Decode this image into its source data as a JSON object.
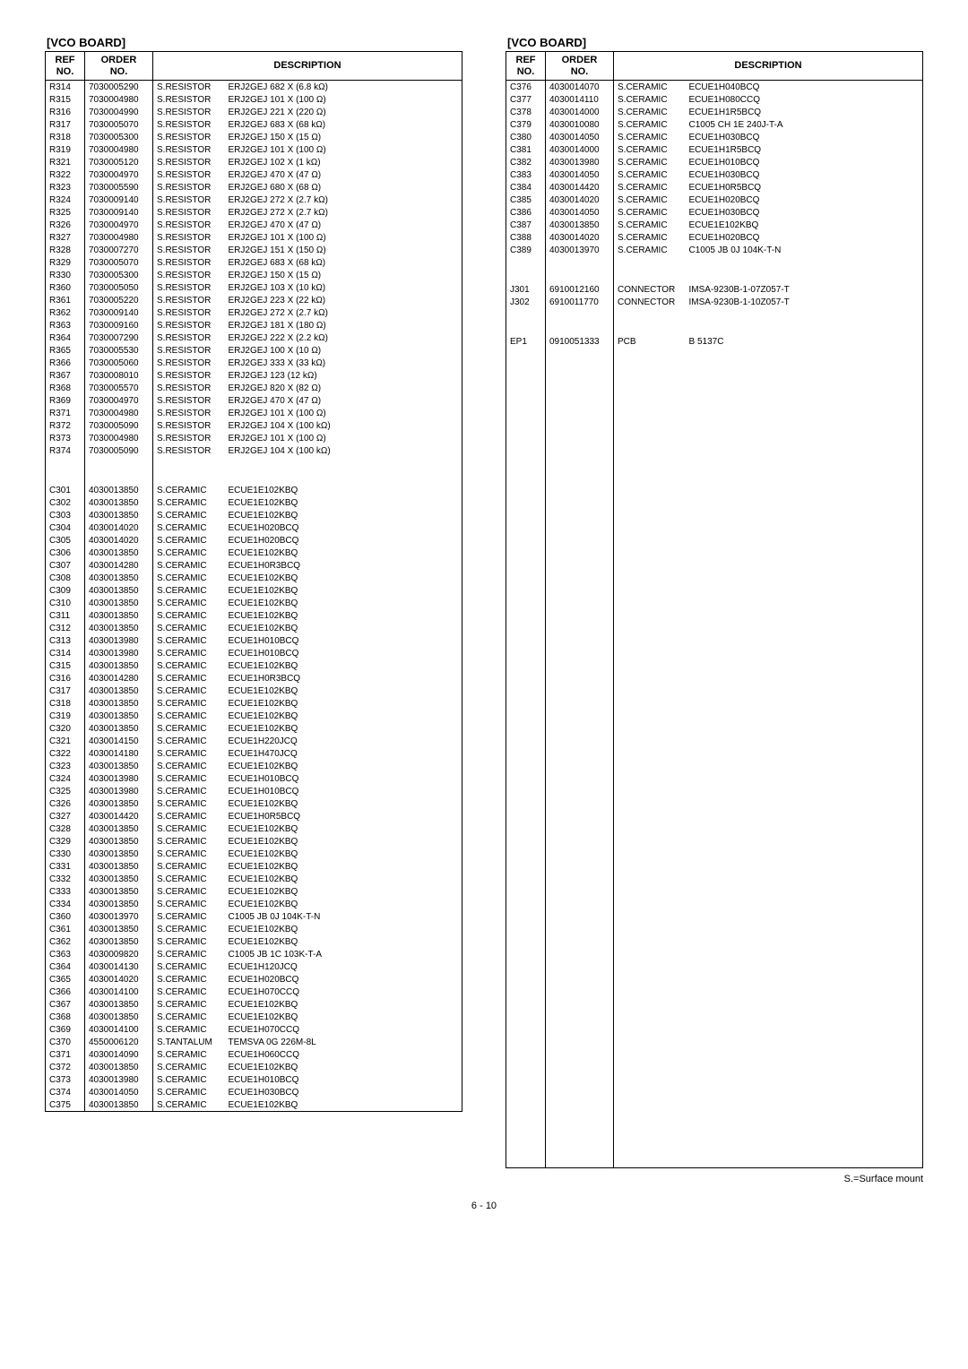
{
  "left": {
    "title": "[VCO BOARD]",
    "headers": {
      "ref": "REF\nNO.",
      "order": "ORDER\nNO.",
      "desc": "DESCRIPTION"
    },
    "rows": [
      {
        "ref": "R314",
        "ord": "7030005290",
        "type": "S.RESISTOR",
        "desc": "ERJ2GEJ 682 X (6.8 kΩ)"
      },
      {
        "ref": "R315",
        "ord": "7030004980",
        "type": "S.RESISTOR",
        "desc": "ERJ2GEJ 101 X (100 Ω)"
      },
      {
        "ref": "R316",
        "ord": "7030004990",
        "type": "S.RESISTOR",
        "desc": "ERJ2GEJ 221 X (220 Ω)"
      },
      {
        "ref": "R317",
        "ord": "7030005070",
        "type": "S.RESISTOR",
        "desc": "ERJ2GEJ 683 X (68 kΩ)"
      },
      {
        "ref": "R318",
        "ord": "7030005300",
        "type": "S.RESISTOR",
        "desc": "ERJ2GEJ 150 X (15 Ω)"
      },
      {
        "ref": "R319",
        "ord": "7030004980",
        "type": "S.RESISTOR",
        "desc": "ERJ2GEJ 101 X (100 Ω)"
      },
      {
        "ref": "R321",
        "ord": "7030005120",
        "type": "S.RESISTOR",
        "desc": "ERJ2GEJ 102 X (1 kΩ)"
      },
      {
        "ref": "R322",
        "ord": "7030004970",
        "type": "S.RESISTOR",
        "desc": "ERJ2GEJ 470 X (47 Ω)"
      },
      {
        "ref": "R323",
        "ord": "7030005590",
        "type": "S.RESISTOR",
        "desc": "ERJ2GEJ 680 X (68 Ω)"
      },
      {
        "ref": "R324",
        "ord": "7030009140",
        "type": "S.RESISTOR",
        "desc": "ERJ2GEJ 272 X (2.7 kΩ)"
      },
      {
        "ref": "R325",
        "ord": "7030009140",
        "type": "S.RESISTOR",
        "desc": "ERJ2GEJ 272 X (2.7 kΩ)"
      },
      {
        "ref": "R326",
        "ord": "7030004970",
        "type": "S.RESISTOR",
        "desc": "ERJ2GEJ 470 X (47 Ω)"
      },
      {
        "ref": "R327",
        "ord": "7030004980",
        "type": "S.RESISTOR",
        "desc": "ERJ2GEJ 101 X (100 Ω)"
      },
      {
        "ref": "R328",
        "ord": "7030007270",
        "type": "S.RESISTOR",
        "desc": "ERJ2GEJ 151 X (150 Ω)"
      },
      {
        "ref": "R329",
        "ord": "7030005070",
        "type": "S.RESISTOR",
        "desc": "ERJ2GEJ 683 X (68 kΩ)"
      },
      {
        "ref": "R330",
        "ord": "7030005300",
        "type": "S.RESISTOR",
        "desc": "ERJ2GEJ 150 X (15 Ω)"
      },
      {
        "ref": "R360",
        "ord": "7030005050",
        "type": "S.RESISTOR",
        "desc": "ERJ2GEJ 103 X (10 kΩ)"
      },
      {
        "ref": "R361",
        "ord": "7030005220",
        "type": "S.RESISTOR",
        "desc": "ERJ2GEJ 223 X (22 kΩ)"
      },
      {
        "ref": "R362",
        "ord": "7030009140",
        "type": "S.RESISTOR",
        "desc": "ERJ2GEJ 272 X (2.7 kΩ)"
      },
      {
        "ref": "R363",
        "ord": "7030009160",
        "type": "S.RESISTOR",
        "desc": "ERJ2GEJ 181 X (180 Ω)"
      },
      {
        "ref": "R364",
        "ord": "7030007290",
        "type": "S.RESISTOR",
        "desc": "ERJ2GEJ 222 X (2.2 kΩ)"
      },
      {
        "ref": "R365",
        "ord": "7030005530",
        "type": "S.RESISTOR",
        "desc": "ERJ2GEJ 100 X (10 Ω)"
      },
      {
        "ref": "R366",
        "ord": "7030005060",
        "type": "S.RESISTOR",
        "desc": "ERJ2GEJ 333 X (33 kΩ)"
      },
      {
        "ref": "R367",
        "ord": "7030008010",
        "type": "S.RESISTOR",
        "desc": "ERJ2GEJ 123 (12 kΩ)"
      },
      {
        "ref": "R368",
        "ord": "7030005570",
        "type": "S.RESISTOR",
        "desc": "ERJ2GEJ 820 X (82 Ω)"
      },
      {
        "ref": "R369",
        "ord": "7030004970",
        "type": "S.RESISTOR",
        "desc": "ERJ2GEJ 470 X (47 Ω)"
      },
      {
        "ref": "R371",
        "ord": "7030004980",
        "type": "S.RESISTOR",
        "desc": "ERJ2GEJ 101 X (100 Ω)"
      },
      {
        "ref": "R372",
        "ord": "7030005090",
        "type": "S.RESISTOR",
        "desc": "ERJ2GEJ 104 X (100 kΩ)"
      },
      {
        "ref": "R373",
        "ord": "7030004980",
        "type": "S.RESISTOR",
        "desc": "ERJ2GEJ 101 X (100 Ω)"
      },
      {
        "ref": "R374",
        "ord": "7030005090",
        "type": "S.RESISTOR",
        "desc": "ERJ2GEJ 104 X (100 kΩ)"
      },
      {
        "gap": true
      },
      {
        "gap": true
      },
      {
        "ref": "C301",
        "ord": "4030013850",
        "type": "S.CERAMIC",
        "desc": "ECUE1E102KBQ"
      },
      {
        "ref": "C302",
        "ord": "4030013850",
        "type": "S.CERAMIC",
        "desc": "ECUE1E102KBQ"
      },
      {
        "ref": "C303",
        "ord": "4030013850",
        "type": "S.CERAMIC",
        "desc": "ECUE1E102KBQ"
      },
      {
        "ref": "C304",
        "ord": "4030014020",
        "type": "S.CERAMIC",
        "desc": "ECUE1H020BCQ"
      },
      {
        "ref": "C305",
        "ord": "4030014020",
        "type": "S.CERAMIC",
        "desc": "ECUE1H020BCQ"
      },
      {
        "ref": "C306",
        "ord": "4030013850",
        "type": "S.CERAMIC",
        "desc": "ECUE1E102KBQ"
      },
      {
        "ref": "C307",
        "ord": "4030014280",
        "type": "S.CERAMIC",
        "desc": "ECUE1H0R3BCQ"
      },
      {
        "ref": "C308",
        "ord": "4030013850",
        "type": "S.CERAMIC",
        "desc": "ECUE1E102KBQ"
      },
      {
        "ref": "C309",
        "ord": "4030013850",
        "type": "S.CERAMIC",
        "desc": "ECUE1E102KBQ"
      },
      {
        "ref": "C310",
        "ord": "4030013850",
        "type": "S.CERAMIC",
        "desc": "ECUE1E102KBQ"
      },
      {
        "ref": "C311",
        "ord": "4030013850",
        "type": "S.CERAMIC",
        "desc": "ECUE1E102KBQ"
      },
      {
        "ref": "C312",
        "ord": "4030013850",
        "type": "S.CERAMIC",
        "desc": "ECUE1E102KBQ"
      },
      {
        "ref": "C313",
        "ord": "4030013980",
        "type": "S.CERAMIC",
        "desc": "ECUE1H010BCQ"
      },
      {
        "ref": "C314",
        "ord": "4030013980",
        "type": "S.CERAMIC",
        "desc": "ECUE1H010BCQ"
      },
      {
        "ref": "C315",
        "ord": "4030013850",
        "type": "S.CERAMIC",
        "desc": "ECUE1E102KBQ"
      },
      {
        "ref": "C316",
        "ord": "4030014280",
        "type": "S.CERAMIC",
        "desc": "ECUE1H0R3BCQ"
      },
      {
        "ref": "C317",
        "ord": "4030013850",
        "type": "S.CERAMIC",
        "desc": "ECUE1E102KBQ"
      },
      {
        "ref": "C318",
        "ord": "4030013850",
        "type": "S.CERAMIC",
        "desc": "ECUE1E102KBQ"
      },
      {
        "ref": "C319",
        "ord": "4030013850",
        "type": "S.CERAMIC",
        "desc": "ECUE1E102KBQ"
      },
      {
        "ref": "C320",
        "ord": "4030013850",
        "type": "S.CERAMIC",
        "desc": "ECUE1E102KBQ"
      },
      {
        "ref": "C321",
        "ord": "4030014150",
        "type": "S.CERAMIC",
        "desc": "ECUE1H220JCQ"
      },
      {
        "ref": "C322",
        "ord": "4030014180",
        "type": "S.CERAMIC",
        "desc": "ECUE1H470JCQ"
      },
      {
        "ref": "C323",
        "ord": "4030013850",
        "type": "S.CERAMIC",
        "desc": "ECUE1E102KBQ"
      },
      {
        "ref": "C324",
        "ord": "4030013980",
        "type": "S.CERAMIC",
        "desc": "ECUE1H010BCQ"
      },
      {
        "ref": "C325",
        "ord": "4030013980",
        "type": "S.CERAMIC",
        "desc": "ECUE1H010BCQ"
      },
      {
        "ref": "C326",
        "ord": "4030013850",
        "type": "S.CERAMIC",
        "desc": "ECUE1E102KBQ"
      },
      {
        "ref": "C327",
        "ord": "4030014420",
        "type": "S.CERAMIC",
        "desc": "ECUE1H0R5BCQ"
      },
      {
        "ref": "C328",
        "ord": "4030013850",
        "type": "S.CERAMIC",
        "desc": "ECUE1E102KBQ"
      },
      {
        "ref": "C329",
        "ord": "4030013850",
        "type": "S.CERAMIC",
        "desc": "ECUE1E102KBQ"
      },
      {
        "ref": "C330",
        "ord": "4030013850",
        "type": "S.CERAMIC",
        "desc": "ECUE1E102KBQ"
      },
      {
        "ref": "C331",
        "ord": "4030013850",
        "type": "S.CERAMIC",
        "desc": "ECUE1E102KBQ"
      },
      {
        "ref": "C332",
        "ord": "4030013850",
        "type": "S.CERAMIC",
        "desc": "ECUE1E102KBQ"
      },
      {
        "ref": "C333",
        "ord": "4030013850",
        "type": "S.CERAMIC",
        "desc": "ECUE1E102KBQ"
      },
      {
        "ref": "C334",
        "ord": "4030013850",
        "type": "S.CERAMIC",
        "desc": "ECUE1E102KBQ"
      },
      {
        "ref": "C360",
        "ord": "4030013970",
        "type": "S.CERAMIC",
        "desc": "C1005 JB 0J 104K-T-N"
      },
      {
        "ref": "C361",
        "ord": "4030013850",
        "type": "S.CERAMIC",
        "desc": "ECUE1E102KBQ"
      },
      {
        "ref": "C362",
        "ord": "4030013850",
        "type": "S.CERAMIC",
        "desc": "ECUE1E102KBQ"
      },
      {
        "ref": "C363",
        "ord": "4030009820",
        "type": "S.CERAMIC",
        "desc": "C1005 JB 1C 103K-T-A"
      },
      {
        "ref": "C364",
        "ord": "4030014130",
        "type": "S.CERAMIC",
        "desc": "ECUE1H120JCQ"
      },
      {
        "ref": "C365",
        "ord": "4030014020",
        "type": "S.CERAMIC",
        "desc": "ECUE1H020BCQ"
      },
      {
        "ref": "C366",
        "ord": "4030014100",
        "type": "S.CERAMIC",
        "desc": "ECUE1H070CCQ"
      },
      {
        "ref": "C367",
        "ord": "4030013850",
        "type": "S.CERAMIC",
        "desc": "ECUE1E102KBQ"
      },
      {
        "ref": "C368",
        "ord": "4030013850",
        "type": "S.CERAMIC",
        "desc": "ECUE1E102KBQ"
      },
      {
        "ref": "C369",
        "ord": "4030014100",
        "type": "S.CERAMIC",
        "desc": "ECUE1H070CCQ"
      },
      {
        "ref": "C370",
        "ord": "4550006120",
        "type": "S.TANTALUM",
        "desc": "TEMSVA 0G 226M-8L"
      },
      {
        "ref": "C371",
        "ord": "4030014090",
        "type": "S.CERAMIC",
        "desc": "ECUE1H060CCQ"
      },
      {
        "ref": "C372",
        "ord": "4030013850",
        "type": "S.CERAMIC",
        "desc": "ECUE1E102KBQ"
      },
      {
        "ref": "C373",
        "ord": "4030013980",
        "type": "S.CERAMIC",
        "desc": "ECUE1H010BCQ"
      },
      {
        "ref": "C374",
        "ord": "4030014050",
        "type": "S.CERAMIC",
        "desc": "ECUE1H030BCQ"
      },
      {
        "ref": "C375",
        "ord": "4030013850",
        "type": "S.CERAMIC",
        "desc": "ECUE1E102KBQ"
      }
    ]
  },
  "right": {
    "title": "[VCO BOARD]",
    "headers": {
      "ref": "REF\nNO.",
      "order": "ORDER\nNO.",
      "desc": "DESCRIPTION"
    },
    "rows": [
      {
        "ref": "C376",
        "ord": "4030014070",
        "type": "S.CERAMIC",
        "desc": "ECUE1H040BCQ"
      },
      {
        "ref": "C377",
        "ord": "4030014110",
        "type": "S.CERAMIC",
        "desc": "ECUE1H080CCQ"
      },
      {
        "ref": "C378",
        "ord": "4030014000",
        "type": "S.CERAMIC",
        "desc": "ECUE1H1R5BCQ"
      },
      {
        "ref": "C379",
        "ord": "4030010080",
        "type": "S.CERAMIC",
        "desc": "C1005 CH 1E 240J-T-A"
      },
      {
        "ref": "C380",
        "ord": "4030014050",
        "type": "S.CERAMIC",
        "desc": "ECUE1H030BCQ"
      },
      {
        "ref": "C381",
        "ord": "4030014000",
        "type": "S.CERAMIC",
        "desc": "ECUE1H1R5BCQ"
      },
      {
        "ref": "C382",
        "ord": "4030013980",
        "type": "S.CERAMIC",
        "desc": "ECUE1H010BCQ"
      },
      {
        "ref": "C383",
        "ord": "4030014050",
        "type": "S.CERAMIC",
        "desc": "ECUE1H030BCQ"
      },
      {
        "ref": "C384",
        "ord": "4030014420",
        "type": "S.CERAMIC",
        "desc": "ECUE1H0R5BCQ"
      },
      {
        "ref": "C385",
        "ord": "4030014020",
        "type": "S.CERAMIC",
        "desc": "ECUE1H020BCQ"
      },
      {
        "ref": "C386",
        "ord": "4030014050",
        "type": "S.CERAMIC",
        "desc": "ECUE1H030BCQ"
      },
      {
        "ref": "C387",
        "ord": "4030013850",
        "type": "S.CERAMIC",
        "desc": "ECUE1E102KBQ"
      },
      {
        "ref": "C388",
        "ord": "4030014020",
        "type": "S.CERAMIC",
        "desc": "ECUE1H020BCQ"
      },
      {
        "ref": "C389",
        "ord": "4030013970",
        "type": "S.CERAMIC",
        "desc": "C1005 JB 0J 104K-T-N"
      },
      {
        "gap": true
      },
      {
        "gap": true
      },
      {
        "ref": "J301",
        "ord": "6910012160",
        "type": "CONNECTOR",
        "desc": "IMSA-9230B-1-07Z057-T"
      },
      {
        "ref": "J302",
        "ord": "6910011770",
        "type": "CONNECTOR",
        "desc": "IMSA-9230B-1-10Z057-T"
      },
      {
        "gap": true
      },
      {
        "gap": true
      },
      {
        "ref": "EP1",
        "ord": "0910051333",
        "type": "PCB",
        "desc": "B 5137C"
      }
    ]
  },
  "footer": "S.=Surface mount",
  "pagenum": "6 - 10"
}
